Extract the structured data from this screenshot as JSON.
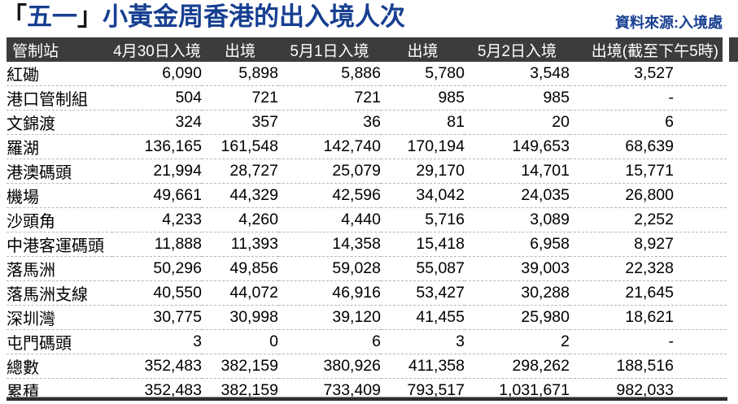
{
  "title": {
    "bracket_open": "「",
    "quoted": "五一",
    "bracket_close": "」",
    "rest": "小黃金周香港的出入境人次"
  },
  "source_label": "資料來源:入境處",
  "colors": {
    "title_blue": "#173f91",
    "header_bg": "#3c3c3c",
    "header_text": "#ffffff",
    "divider": "#b8b8b8",
    "bottom_rule": "#2e2e2e"
  },
  "chart_data": {
    "type": "table",
    "title": "「五一」小黃金周香港的出入境人次",
    "source": "資料來源:入境處",
    "columns": [
      "管制站",
      "4月30日入境",
      "出境",
      "5月1日入境",
      "出境",
      "5月2日入境",
      "出境(截至下午5時)"
    ],
    "rows": [
      {
        "station": "紅磡",
        "values": [
          "6,090",
          "5,898",
          "5,886",
          "5,780",
          "3,548",
          "3,527"
        ]
      },
      {
        "station": "港口管制組",
        "values": [
          "504",
          "721",
          "721",
          "985",
          "985",
          "-"
        ]
      },
      {
        "station": "文錦渡",
        "values": [
          "324",
          "357",
          "36",
          "81",
          "20",
          "6"
        ]
      },
      {
        "station": "羅湖",
        "values": [
          "136,165",
          "161,548",
          "142,740",
          "170,194",
          "149,653",
          "68,639"
        ]
      },
      {
        "station": "港澳碼頭",
        "values": [
          "21,994",
          "28,727",
          "25,079",
          "29,170",
          "14,701",
          "15,771"
        ]
      },
      {
        "station": "機場",
        "values": [
          "49,661",
          "44,329",
          "42,596",
          "34,042",
          "24,035",
          "26,800"
        ]
      },
      {
        "station": "沙頭角",
        "values": [
          "4,233",
          "4,260",
          "4,440",
          "5,716",
          "3,089",
          "2,252"
        ]
      },
      {
        "station": "中港客運碼頭",
        "values": [
          "11,888",
          "11,393",
          "14,358",
          "15,418",
          "6,958",
          "8,927"
        ]
      },
      {
        "station": "落馬洲",
        "values": [
          "50,296",
          "49,856",
          "59,028",
          "55,087",
          "39,003",
          "22,328"
        ]
      },
      {
        "station": "落馬洲支線",
        "values": [
          "40,550",
          "44,072",
          "46,916",
          "53,427",
          "30,288",
          "21,645"
        ]
      },
      {
        "station": "深圳灣",
        "values": [
          "30,775",
          "30,998",
          "39,120",
          "41,455",
          "25,980",
          "18,621"
        ]
      },
      {
        "station": "屯門碼頭",
        "values": [
          "3",
          "0",
          "6",
          "3",
          "2",
          "-"
        ]
      },
      {
        "station": "總數",
        "values": [
          "352,483",
          "382,159",
          "380,926",
          "411,358",
          "298,262",
          "188,516"
        ]
      },
      {
        "station": "累積",
        "values": [
          "352,483",
          "382,159",
          "733,409",
          "793,517",
          "1,031,671",
          "982,033"
        ]
      }
    ]
  }
}
